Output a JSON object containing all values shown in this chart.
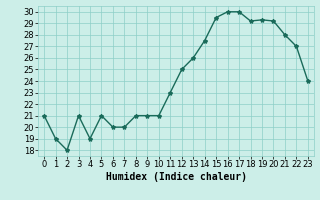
{
  "x": [
    0,
    1,
    2,
    3,
    4,
    5,
    6,
    7,
    8,
    9,
    10,
    11,
    12,
    13,
    14,
    15,
    16,
    17,
    18,
    19,
    20,
    21,
    22,
    23
  ],
  "y": [
    21,
    19,
    18,
    21,
    19,
    21,
    20,
    20,
    21,
    21,
    21,
    23,
    25,
    26,
    27.5,
    29.5,
    30,
    30,
    29.2,
    29.3,
    29.2,
    28,
    27,
    24
  ],
  "line_color": "#1a6b5a",
  "marker": "*",
  "marker_color": "#1a6b5a",
  "bg_color": "#cceee8",
  "grid_color": "#8ecfc7",
  "xlabel": "Humidex (Indice chaleur)",
  "ylim": [
    17.5,
    30.5
  ],
  "xlim": [
    -0.5,
    23.5
  ],
  "yticks": [
    18,
    19,
    20,
    21,
    22,
    23,
    24,
    25,
    26,
    27,
    28,
    29,
    30
  ],
  "xticks": [
    0,
    1,
    2,
    3,
    4,
    5,
    6,
    7,
    8,
    9,
    10,
    11,
    12,
    13,
    14,
    15,
    16,
    17,
    18,
    19,
    20,
    21,
    22,
    23
  ],
  "xlabel_fontsize": 7,
  "tick_fontsize": 6,
  "line_width": 1.0,
  "marker_size": 3.0
}
